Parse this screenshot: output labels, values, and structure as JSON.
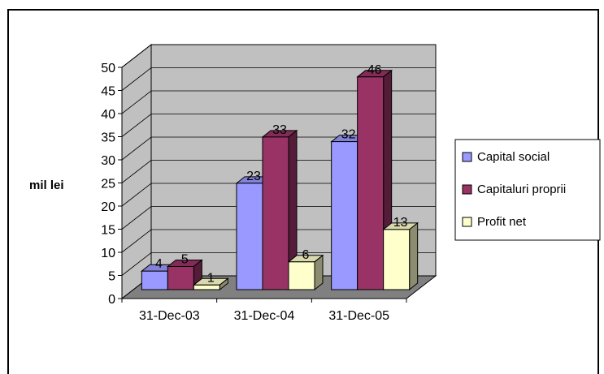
{
  "chart_data": {
    "type": "bar",
    "categories": [
      "31-Dec-03",
      "31-Dec-04",
      "31-Dec-05"
    ],
    "series": [
      {
        "name": "Capital social",
        "values": [
          4,
          23,
          32
        ],
        "color": "#9999ff"
      },
      {
        "name": "Capitaluri proprii",
        "values": [
          5,
          33,
          46
        ],
        "color": "#993366"
      },
      {
        "name": "Profit net",
        "values": [
          1,
          6,
          13
        ],
        "color": "#ffffcc"
      }
    ],
    "ylabel": "mil lei",
    "ylim": [
      0,
      50
    ],
    "yticks": [
      0,
      5,
      10,
      15,
      20,
      25,
      30,
      35,
      40,
      45,
      50
    ],
    "grid": true,
    "legend": "right",
    "wall_color": "#c0c0c0",
    "floor_color": "#808080"
  }
}
